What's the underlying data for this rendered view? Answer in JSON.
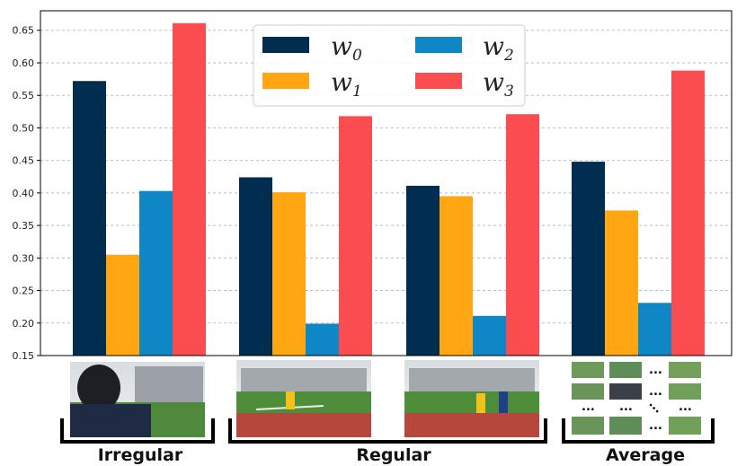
{
  "chart_data": {
    "type": "bar",
    "title": "",
    "xlabel": "",
    "ylabel": "",
    "ylim": [
      0.15,
      0.68
    ],
    "grid": true,
    "legend_position": "top-center",
    "categories": [
      "Irregular",
      "Regular (1)",
      "Regular (2)",
      "Average"
    ],
    "yticks": [
      "0.15",
      "0.20",
      "0.25",
      "0.30",
      "0.35",
      "0.40",
      "0.45",
      "0.50",
      "0.55",
      "0.60",
      "0.65"
    ],
    "series": [
      {
        "name": "w",
        "sub": "0",
        "color": "#012d50",
        "values": [
          0.572,
          0.424,
          0.411,
          0.448
        ]
      },
      {
        "name": "w",
        "sub": "1",
        "color": "#ffa612",
        "values": [
          0.305,
          0.401,
          0.395,
          0.373
        ]
      },
      {
        "name": "w",
        "sub": "2",
        "color": "#0f86c6",
        "values": [
          0.403,
          0.199,
          0.211,
          0.231
        ]
      },
      {
        "name": "w",
        "sub": "3",
        "color": "#fb4c4f",
        "values": [
          0.661,
          0.518,
          0.521,
          0.588
        ]
      }
    ],
    "group_labels": [
      "Irregular",
      "Regular",
      "Average"
    ],
    "image_captions": [
      "Irregular",
      "Regular",
      "Regular",
      "Average"
    ],
    "ellipsis": "..."
  }
}
